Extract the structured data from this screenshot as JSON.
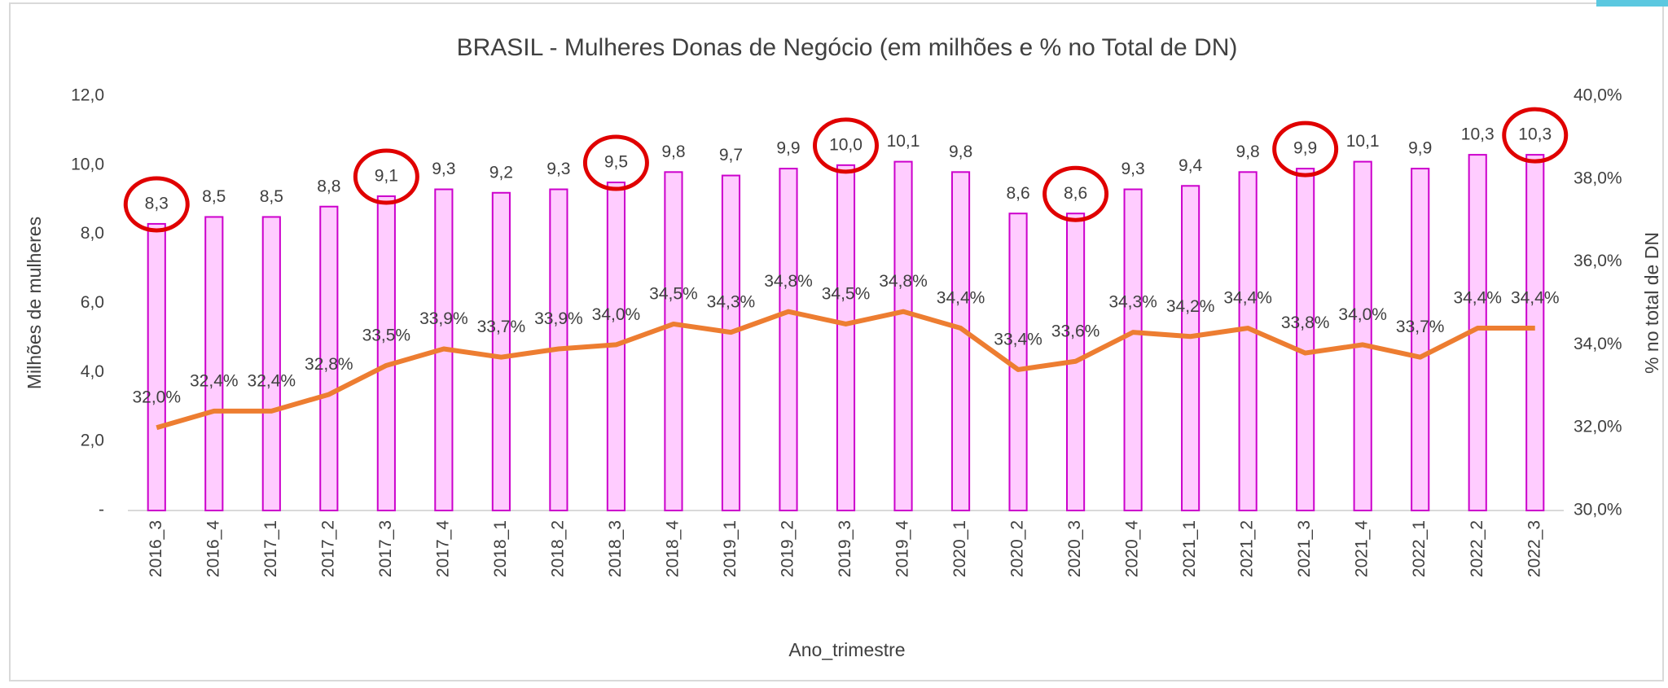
{
  "chart_data": {
    "type": "bar_line",
    "title": "BRASIL - Mulheres Donas de Negócio (em milhões e % no Total de DN)",
    "x_label": "Ano_trimestre",
    "y_label": "Milhões de mulheres",
    "y2_label": "% no total de DN",
    "categories": [
      "2016_3",
      "2016_4",
      "2017_1",
      "2017_2",
      "2017_3",
      "2017_4",
      "2018_1",
      "2018_2",
      "2018_3",
      "2018_4",
      "2019_1",
      "2019_2",
      "2019_3",
      "2019_4",
      "2020_1",
      "2020_2",
      "2020_3",
      "2020_4",
      "2021_1",
      "2021_2",
      "2021_3",
      "2021_4",
      "2022_1",
      "2022_2",
      "2022_3"
    ],
    "series": [
      {
        "type": "bar",
        "color": "#ffccff",
        "edge_color": "#cc00cc",
        "values": [
          8.3,
          8.5,
          8.5,
          8.8,
          9.1,
          9.3,
          9.2,
          9.3,
          9.5,
          9.8,
          9.7,
          9.9,
          10.0,
          10.1,
          9.8,
          8.6,
          8.6,
          9.3,
          9.4,
          9.8,
          9.9,
          10.1,
          9.9,
          10.3,
          10.3
        ],
        "value_labels": [
          "8,3",
          "8,5",
          "8,5",
          "8,8",
          "9,1",
          "9,3",
          "9,2",
          "9,3",
          "9,5",
          "9,8",
          "9,7",
          "9,9",
          "10,0",
          "10,1",
          "9,8",
          "8,6",
          "8,6",
          "9,3",
          "9,4",
          "9,8",
          "9,9",
          "10,1",
          "9,9",
          "10,3",
          "10,3"
        ]
      },
      {
        "type": "line",
        "axis": "y2",
        "color": "#ed7d31",
        "values": [
          32.0,
          32.4,
          32.4,
          32.8,
          33.5,
          33.9,
          33.7,
          33.9,
          34.0,
          34.5,
          34.3,
          34.8,
          34.5,
          34.8,
          34.4,
          33.4,
          33.6,
          34.3,
          34.2,
          34.4,
          33.8,
          34.0,
          33.7,
          34.4,
          34.4
        ],
        "value_labels": [
          "32,0%",
          "32,4%",
          "32,4%",
          "32,8%",
          "33,5%",
          "33,9%",
          "33,7%",
          "33,9%",
          "34,0%",
          "34,5%",
          "34,3%",
          "34,8%",
          "34,5%",
          "34,8%",
          "34,4%",
          "33,4%",
          "33,6%",
          "34,3%",
          "34,2%",
          "34,4%",
          "33,8%",
          "34,0%",
          "33,7%",
          "34,4%",
          "34,4%"
        ]
      }
    ],
    "ylim": [
      0,
      12
    ],
    "yticks": [
      {
        "value": 0,
        "label": "-"
      },
      {
        "value": 2,
        "label": "2,0"
      },
      {
        "value": 4,
        "label": "4,0"
      },
      {
        "value": 6,
        "label": "6,0"
      },
      {
        "value": 8,
        "label": "8,0"
      },
      {
        "value": 10,
        "label": "10,0"
      },
      {
        "value": 12,
        "label": "12,0"
      }
    ],
    "y2lim": [
      30,
      40
    ],
    "y2ticks": [
      {
        "value": 30,
        "label": "30,0%"
      },
      {
        "value": 32,
        "label": "32,0%"
      },
      {
        "value": 34,
        "label": "34,0%"
      },
      {
        "value": 36,
        "label": "36,0%"
      },
      {
        "value": 38,
        "label": "38,0%"
      },
      {
        "value": 40,
        "label": "40,0%"
      }
    ],
    "highlight": {
      "color": "#e00000",
      "indices": [
        0,
        4,
        8,
        12,
        16,
        20,
        24
      ]
    }
  }
}
